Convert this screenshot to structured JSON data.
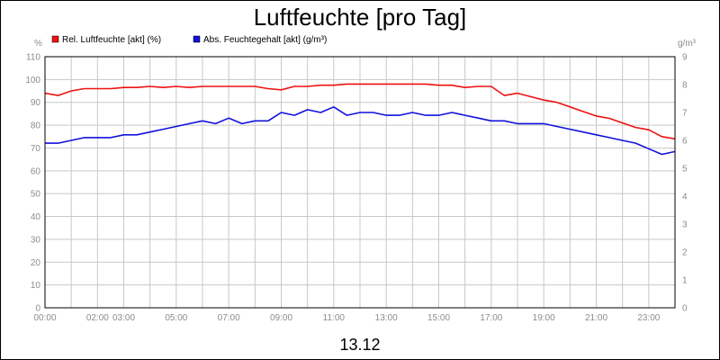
{
  "chart_data": {
    "type": "line",
    "title": "Luftfeuchte [pro Tag]",
    "date_label": "13.12",
    "grid": true,
    "legend_position": "top-left",
    "x_range": [
      0,
      24
    ],
    "x_tick_labels": [
      {
        "x": 0,
        "label": "00:00"
      },
      {
        "x": 2,
        "label": "02:00"
      },
      {
        "x": 3,
        "label": "03:00"
      },
      {
        "x": 5,
        "label": "05:00"
      },
      {
        "x": 7,
        "label": "07:00"
      },
      {
        "x": 9,
        "label": "09:00"
      },
      {
        "x": 11,
        "label": "11:00"
      },
      {
        "x": 13,
        "label": "13:00"
      },
      {
        "x": 15,
        "label": "15:00"
      },
      {
        "x": 17,
        "label": "17:00"
      },
      {
        "x": 19,
        "label": "19:00"
      },
      {
        "x": 21,
        "label": "21:00"
      },
      {
        "x": 23,
        "label": "23:00"
      }
    ],
    "y_left": {
      "unit": "%",
      "range": [
        0,
        110
      ],
      "ticks": [
        0,
        10,
        20,
        30,
        40,
        50,
        60,
        70,
        80,
        90,
        100,
        110
      ]
    },
    "y_right": {
      "unit": "g/m³",
      "range": [
        0,
        9
      ],
      "ticks": [
        0,
        1,
        2,
        3,
        4,
        5,
        6,
        7,
        8,
        9
      ]
    },
    "series": [
      {
        "name": "Rel. Luftfeuchte [akt] (%)",
        "axis": "left",
        "color": "#ee1111",
        "x": [
          0,
          0.5,
          1,
          1.5,
          2,
          2.5,
          3,
          3.5,
          4,
          4.5,
          5,
          5.5,
          6,
          6.5,
          7,
          7.5,
          8,
          8.5,
          9,
          9.5,
          10,
          10.5,
          11,
          11.5,
          12,
          12.5,
          13,
          13.5,
          14,
          14.5,
          15,
          15.5,
          16,
          16.5,
          17,
          17.5,
          18,
          18.5,
          19,
          19.5,
          20,
          20.5,
          21,
          21.5,
          22,
          22.5,
          23,
          23.5,
          24
        ],
        "values": [
          94,
          93,
          95,
          96,
          96,
          96,
          96.5,
          96.5,
          97,
          96.5,
          97,
          96.5,
          97,
          97,
          97,
          97,
          97,
          96,
          95.5,
          97,
          97,
          97.5,
          97.5,
          98,
          98,
          98,
          98,
          98,
          98,
          98,
          97.5,
          97.5,
          96.5,
          97,
          97,
          93,
          94,
          92.5,
          91,
          90,
          88,
          86,
          84,
          83,
          81,
          79,
          78,
          75,
          74
        ]
      },
      {
        "name": "Abs. Feuchtegehalt [akt] (g/m³)",
        "axis": "right",
        "color": "#1111dd",
        "x": [
          0,
          0.5,
          1,
          1.5,
          2,
          2.5,
          3,
          3.5,
          4,
          4.5,
          5,
          5.5,
          6,
          6.5,
          7,
          7.5,
          8,
          8.5,
          9,
          9.5,
          10,
          10.5,
          11,
          11.5,
          12,
          12.5,
          13,
          13.5,
          14,
          14.5,
          15,
          15.5,
          16,
          16.5,
          17,
          17.5,
          18,
          18.5,
          19,
          19.5,
          20,
          20.5,
          21,
          21.5,
          22,
          22.5,
          23,
          23.5,
          24
        ],
        "values": [
          5.9,
          5.9,
          6.0,
          6.1,
          6.1,
          6.1,
          6.2,
          6.2,
          6.3,
          6.4,
          6.5,
          6.6,
          6.7,
          6.6,
          6.8,
          6.6,
          6.7,
          6.7,
          7.0,
          6.9,
          7.1,
          7.0,
          7.2,
          6.9,
          7.0,
          7.0,
          6.9,
          6.9,
          7.0,
          6.9,
          6.9,
          7.0,
          6.9,
          6.8,
          6.7,
          6.7,
          6.6,
          6.6,
          6.6,
          6.5,
          6.4,
          6.3,
          6.2,
          6.1,
          6.0,
          5.9,
          5.7,
          5.5,
          5.6
        ]
      }
    ]
  }
}
